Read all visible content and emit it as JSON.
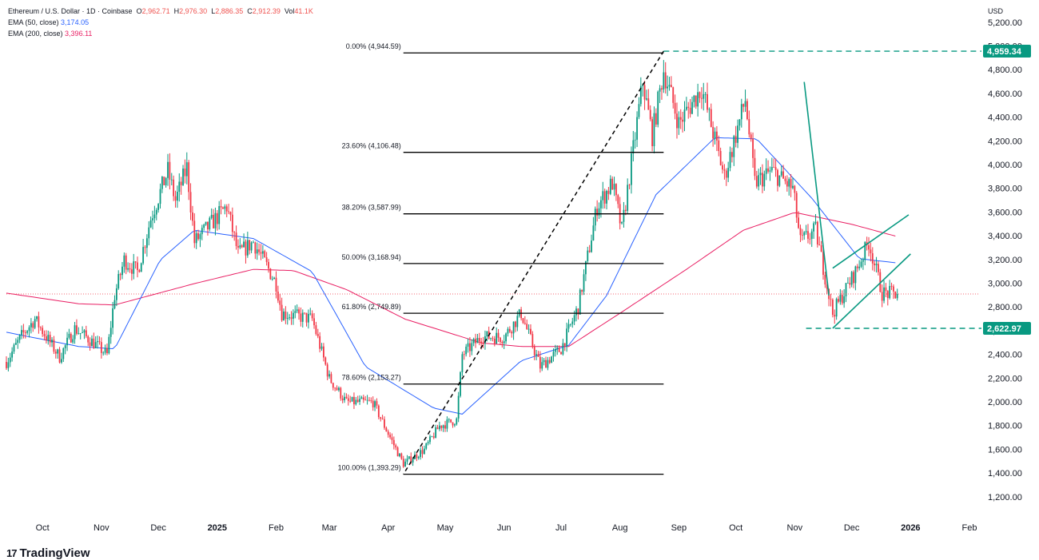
{
  "legend": {
    "symbol": "Ethereum / U.S. Dollar · 1D · Coinbase",
    "open_label": "O",
    "open": "2,962.71",
    "high_label": "H",
    "high": "2,976.30",
    "low_label": "L",
    "low": "2,886.35",
    "close_label": "C",
    "close": "2,912.39",
    "vol_label": "Vol",
    "vol": "41.1K",
    "ema50_label": "EMA (50, close)",
    "ema50_value": "3,174.05",
    "ema200_label": "EMA (200, close)",
    "ema200_value": "3,396.11"
  },
  "footer": {
    "brand": "TradingView",
    "logo_glyph": "17"
  },
  "colors": {
    "up": "#089981",
    "down": "#f23645",
    "ema50": "#2962ff",
    "ema200": "#e91e63",
    "tagGreen": "#089981",
    "last": "#f23645"
  },
  "chart_data": {
    "type": "candlestick",
    "currency_label": "USD",
    "y_ticks": [
      1200,
      1400,
      1600,
      1800,
      2000,
      2200,
      2400,
      2600,
      2800,
      3000,
      3200,
      3400,
      3600,
      3800,
      4000,
      4200,
      4400,
      4600,
      4800,
      5000,
      5200
    ],
    "y_tick_labels": [
      "1,200.00",
      "1,400.00",
      "1,600.00",
      "1,800.00",
      "2,000.00",
      "2,200.00",
      "2,400.00",
      "2,600.00",
      "2,800.00",
      "3,000.00",
      "3,200.00",
      "3,400.00",
      "3,600.00",
      "3,800.00",
      "4,000.00",
      "4,200.00",
      "4,400.00",
      "4,600.00",
      "4,800.00",
      "5,000.00",
      "5,200.00"
    ],
    "x_ticks": [
      {
        "date": "2024-10-01",
        "label": "Oct",
        "bold": false
      },
      {
        "date": "2024-11-01",
        "label": "Nov",
        "bold": false
      },
      {
        "date": "2024-12-01",
        "label": "Dec",
        "bold": false
      },
      {
        "date": "2025-01-01",
        "label": "2025",
        "bold": true
      },
      {
        "date": "2025-02-01",
        "label": "Feb",
        "bold": false
      },
      {
        "date": "2025-03-01",
        "label": "Mar",
        "bold": false
      },
      {
        "date": "2025-04-01",
        "label": "Apr",
        "bold": false
      },
      {
        "date": "2025-05-01",
        "label": "May",
        "bold": false
      },
      {
        "date": "2025-06-01",
        "label": "Jun",
        "bold": false
      },
      {
        "date": "2025-07-01",
        "label": "Jul",
        "bold": false
      },
      {
        "date": "2025-08-01",
        "label": "Aug",
        "bold": false
      },
      {
        "date": "2025-09-01",
        "label": "Sep",
        "bold": false
      },
      {
        "date": "2025-10-01",
        "label": "Oct",
        "bold": false
      },
      {
        "date": "2025-11-01",
        "label": "Nov",
        "bold": false
      },
      {
        "date": "2025-12-01",
        "label": "Dec",
        "bold": false
      },
      {
        "date": "2026-01-01",
        "label": "2026",
        "bold": true
      },
      {
        "date": "2026-02-01",
        "label": "Feb",
        "bold": false
      }
    ],
    "price_path": [
      [
        "2024-09-12",
        2340
      ],
      [
        "2024-09-20",
        2560
      ],
      [
        "2024-09-27",
        2700
      ],
      [
        "2024-10-01",
        2600
      ],
      [
        "2024-10-10",
        2380
      ],
      [
        "2024-10-18",
        2620
      ],
      [
        "2024-10-28",
        2500
      ],
      [
        "2024-11-04",
        2400
      ],
      [
        "2024-11-08",
        2900
      ],
      [
        "2024-11-13",
        3200
      ],
      [
        "2024-11-20",
        3100
      ],
      [
        "2024-11-27",
        3550
      ],
      [
        "2024-12-06",
        3950
      ],
      [
        "2024-12-10",
        3700
      ],
      [
        "2024-12-16",
        3980
      ],
      [
        "2024-12-20",
        3350
      ],
      [
        "2025-01-06",
        3650
      ],
      [
        "2025-01-12",
        3250
      ],
      [
        "2025-01-20",
        3350
      ],
      [
        "2025-01-27",
        3150
      ],
      [
        "2025-02-01",
        3000
      ],
      [
        "2025-02-04",
        2750
      ],
      [
        "2025-02-20",
        2700
      ],
      [
        "2025-03-01",
        2200
      ],
      [
        "2025-03-10",
        2000
      ],
      [
        "2025-03-24",
        2000
      ],
      [
        "2025-03-30",
        1800
      ],
      [
        "2025-04-09",
        1480
      ],
      [
        "2025-04-20",
        1600
      ],
      [
        "2025-04-28",
        1800
      ],
      [
        "2025-05-07",
        1850
      ],
      [
        "2025-05-10",
        2400
      ],
      [
        "2025-05-20",
        2550
      ],
      [
        "2025-06-01",
        2550
      ],
      [
        "2025-06-10",
        2750
      ],
      [
        "2025-06-20",
        2300
      ],
      [
        "2025-07-01",
        2450
      ],
      [
        "2025-07-10",
        2800
      ],
      [
        "2025-07-20",
        3650
      ],
      [
        "2025-07-28",
        3850
      ],
      [
        "2025-08-02",
        3450
      ],
      [
        "2025-08-13",
        4700
      ],
      [
        "2025-08-18",
        4250
      ],
      [
        "2025-08-24",
        4800
      ],
      [
        "2025-09-01",
        4350
      ],
      [
        "2025-09-13",
        4650
      ],
      [
        "2025-09-25",
        3900
      ],
      [
        "2025-10-06",
        4550
      ],
      [
        "2025-10-11",
        3850
      ],
      [
        "2025-10-20",
        3950
      ],
      [
        "2025-10-31",
        3800
      ],
      [
        "2025-11-04",
        3350
      ],
      [
        "2025-11-12",
        3450
      ],
      [
        "2025-11-21",
        2750
      ],
      [
        "2025-12-03",
        3100
      ],
      [
        "2025-12-10",
        3350
      ],
      [
        "2025-12-17",
        2920
      ],
      [
        "2025-12-25",
        2912.39
      ]
    ],
    "ema50_path": [
      [
        "2024-09-12",
        2590
      ],
      [
        "2024-10-20",
        2470
      ],
      [
        "2024-11-08",
        2450
      ],
      [
        "2024-12-02",
        3200
      ],
      [
        "2024-12-20",
        3450
      ],
      [
        "2025-01-20",
        3380
      ],
      [
        "2025-02-20",
        3100
      ],
      [
        "2025-03-20",
        2300
      ],
      [
        "2025-04-25",
        1950
      ],
      [
        "2025-05-10",
        1900
      ],
      [
        "2025-06-10",
        2350
      ],
      [
        "2025-07-05",
        2480
      ],
      [
        "2025-07-25",
        2900
      ],
      [
        "2025-08-20",
        3750
      ],
      [
        "2025-09-20",
        4230
      ],
      [
        "2025-10-12",
        4220
      ],
      [
        "2025-11-10",
        3720
      ],
      [
        "2025-12-05",
        3210
      ],
      [
        "2025-12-25",
        3174.05
      ]
    ],
    "ema200_path": [
      [
        "2024-09-12",
        2920
      ],
      [
        "2024-10-20",
        2830
      ],
      [
        "2024-11-08",
        2820
      ],
      [
        "2024-12-20",
        3000
      ],
      [
        "2025-01-20",
        3120
      ],
      [
        "2025-02-10",
        3110
      ],
      [
        "2025-03-10",
        2950
      ],
      [
        "2025-04-10",
        2700
      ],
      [
        "2025-05-20",
        2500
      ],
      [
        "2025-06-10",
        2470
      ],
      [
        "2025-07-05",
        2470
      ],
      [
        "2025-08-01",
        2750
      ],
      [
        "2025-09-05",
        3120
      ],
      [
        "2025-10-05",
        3450
      ],
      [
        "2025-11-01",
        3600
      ],
      [
        "2025-12-01",
        3500
      ],
      [
        "2025-12-25",
        3396.11
      ]
    ],
    "fibonacci": {
      "levels": [
        {
          "label": "0.00% (4,944.59)",
          "price": 4944.59
        },
        {
          "label": "23.60% (4,106.48)",
          "price": 4106.48
        },
        {
          "label": "38.20% (3,587.99)",
          "price": 3587.99
        },
        {
          "label": "50.00% (3,168.94)",
          "price": 3168.94
        },
        {
          "label": "61.80% (2,749.89)",
          "price": 2749.89
        },
        {
          "label": "78.60% (2,153.27)",
          "price": 2153.27
        },
        {
          "label": "100.00% (1,393.29)",
          "price": 1393.29
        }
      ],
      "start_date": "2025-04-09",
      "end_date": "2025-08-24"
    },
    "trend_line": {
      "from": [
        "2025-08-24",
        4959.34
      ],
      "to": [
        "2025-04-09",
        1393.29
      ]
    },
    "horizontal_levels": [
      {
        "price": 4959.34,
        "label": "4,959.34",
        "from_date": "2025-08-24"
      },
      {
        "price": 2622.97,
        "label": "2,622.97",
        "from_date": "2025-11-07"
      }
    ],
    "teal_lines": [
      {
        "from": [
          "2025-11-06",
          4700
        ],
        "to": [
          "2025-11-19",
          2900
        ]
      },
      {
        "from": [
          "2025-11-21",
          2622.97
        ],
        "to": [
          "2026-01-01",
          3250
        ]
      },
      {
        "from": [
          "2025-11-21",
          3130
        ],
        "to": [
          "2025-12-31",
          3580
        ]
      }
    ],
    "last_price": 2912.39
  }
}
